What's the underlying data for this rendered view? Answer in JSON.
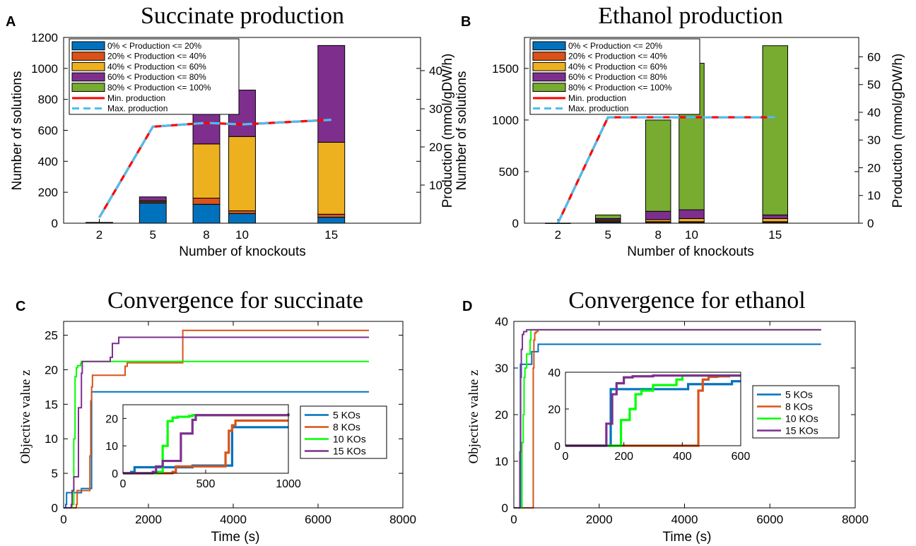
{
  "colors": {
    "blue": "#0072BD",
    "orange": "#D95319",
    "yellow": "#EDB120",
    "purple": "#7E2F8E",
    "green": "#77AC30",
    "bright_green": "#00FF00",
    "min_line": "#FF0000",
    "max_line": "#4DBEEE"
  },
  "panels": {
    "A": {
      "letter": "A",
      "title": "Succinate production",
      "xlabel": "Number of knockouts",
      "ylabel_left": "Number of solutions",
      "ylabel_right": "Production (mmol/gDW/h)"
    },
    "B": {
      "letter": "B",
      "title": "Ethanol production",
      "xlabel": "Number of knockouts",
      "ylabel_left": "Number of solutions",
      "ylabel_right": "Production (mmol/gDW/h)"
    },
    "C": {
      "letter": "C",
      "title": "Convergence for succinate",
      "xlabel": "Time (s)",
      "ylabel": "Objective value z"
    },
    "D": {
      "letter": "D",
      "title": "Convergence for ethanol",
      "xlabel": "Time (s)",
      "ylabel": "Objective value z"
    }
  },
  "chart_data": [
    {
      "type": "bar",
      "panel": "A",
      "title": "Succinate production",
      "xlabel": "Number of knockouts",
      "ylabel": "Number of solutions",
      "y2label": "Production (mmol/gDW/h)",
      "categories": [
        "2",
        "5",
        "8",
        "10",
        "15"
      ],
      "xlim": [
        0,
        20
      ],
      "ylim": [
        0,
        1200
      ],
      "yticks": [
        0,
        200,
        400,
        600,
        800,
        1000,
        1200
      ],
      "y2lim": [
        0,
        48.7
      ],
      "y2ticks": [
        10,
        20,
        30,
        40
      ],
      "stacked": true,
      "series": [
        {
          "name": "0%  < Production <= 20%",
          "values": [
            3,
            130,
            122,
            62,
            38
          ]
        },
        {
          "name": "20% < Production <= 40%",
          "values": [
            1,
            8,
            40,
            18,
            20
          ]
        },
        {
          "name": "40% < Production <= 60%",
          "values": [
            1,
            7,
            350,
            480,
            465
          ]
        },
        {
          "name": "60% < Production <= 80%",
          "values": [
            0,
            25,
            208,
            300,
            625
          ]
        },
        {
          "name": "80% < Production <= 100%",
          "values": [
            0,
            0,
            0,
            0,
            0
          ]
        }
      ],
      "lines": [
        {
          "name": "Min. production",
          "x": [
            2,
            5,
            8,
            10,
            15
          ],
          "y": [
            1.5,
            25.3,
            26.3,
            25.9,
            27.1
          ]
        },
        {
          "name": "Max. production",
          "x": [
            2,
            5,
            8,
            10,
            15
          ],
          "y": [
            1.5,
            25.3,
            26.3,
            25.9,
            27.1
          ]
        }
      ],
      "legend": "top-left"
    },
    {
      "type": "bar",
      "panel": "B",
      "title": "Ethanol production",
      "xlabel": "Number of knockouts",
      "ylabel": "Number of solutions",
      "y2label": "Production (mmol/gDW/h)",
      "categories": [
        "2",
        "5",
        "8",
        "10",
        "15"
      ],
      "xlim": [
        0,
        20
      ],
      "ylim": [
        0,
        1800
      ],
      "yticks": [
        0,
        500,
        1000,
        1500
      ],
      "y2lim": [
        0,
        67
      ],
      "y2ticks": [
        0,
        10,
        20,
        30,
        40,
        50,
        60
      ],
      "stacked": true,
      "series": [
        {
          "name": "0%  < Production <= 20%",
          "values": [
            1,
            10,
            5,
            5,
            5
          ]
        },
        {
          "name": "20% < Production <= 40%",
          "values": [
            0,
            10,
            10,
            10,
            10
          ]
        },
        {
          "name": "40% < Production <= 60%",
          "values": [
            0,
            10,
            20,
            30,
            30
          ]
        },
        {
          "name": "60% < Production <= 80%",
          "values": [
            0,
            15,
            80,
            85,
            35
          ]
        },
        {
          "name": "80% < Production <= 100%",
          "values": [
            0,
            35,
            885,
            1420,
            1640
          ]
        }
      ],
      "lines": [
        {
          "name": "Min. production",
          "x": [
            2,
            5,
            8,
            10,
            15
          ],
          "y": [
            0,
            38.2,
            38.2,
            38.2,
            38.2
          ]
        },
        {
          "name": "Max. production",
          "x": [
            2,
            5,
            8,
            10,
            15
          ],
          "y": [
            0,
            38.2,
            38.2,
            38.2,
            38.2
          ]
        }
      ],
      "legend": "top-left"
    },
    {
      "type": "line",
      "panel": "C",
      "title": "Convergence for succinate",
      "xlabel": "Time (s)",
      "ylabel": "Objective value z",
      "xlim": [
        0,
        8000
      ],
      "xticks": [
        0,
        2000,
        4000,
        6000,
        8000
      ],
      "ylim": [
        0,
        27
      ],
      "yticks": [
        0,
        5,
        10,
        15,
        20,
        25
      ],
      "series": [
        {
          "name": "5 KOs",
          "x": [
            0,
            50,
            70,
            400,
            420,
            650,
            660,
            7200
          ],
          "y": [
            0,
            0.5,
            2.2,
            2.2,
            2.8,
            2.8,
            16.8,
            16.8
          ]
        },
        {
          "name": "8 KOs",
          "x": [
            0,
            300,
            320,
            600,
            620,
            640,
            660,
            680,
            1400,
            1450,
            1500,
            2800,
            2810,
            7200
          ],
          "y": [
            0,
            0.5,
            2.5,
            2.5,
            7.5,
            15.5,
            17.5,
            19.2,
            19.2,
            20.5,
            21.0,
            21.0,
            25.7,
            25.7
          ]
        },
        {
          "name": "10 KOs",
          "x": [
            0,
            200,
            240,
            270,
            300,
            330,
            400,
            420,
            7200
          ],
          "y": [
            0,
            0.5,
            10,
            19,
            20.3,
            20.6,
            20.9,
            21.2,
            21.2
          ]
        },
        {
          "name": "15 KOs",
          "x": [
            0,
            180,
            200,
            240,
            320,
            350,
            420,
            440,
            1100,
            1150,
            1300,
            7200
          ],
          "y": [
            0,
            0.5,
            2.5,
            4.5,
            4.5,
            14.5,
            19.5,
            21.2,
            21.8,
            23.8,
            24.7,
            24.7
          ]
        }
      ],
      "inset": {
        "xlim": [
          0,
          1000
        ],
        "xticks": [
          0,
          500,
          1000
        ],
        "ylim": [
          0,
          25
        ],
        "yticks": [
          0,
          10,
          20
        ]
      },
      "legend": "inside-right"
    },
    {
      "type": "line",
      "panel": "D",
      "title": "Convergence for ethanol",
      "xlabel": "Time (s)",
      "ylabel": "Objective value z",
      "xlim": [
        0,
        8000
      ],
      "xticks": [
        0,
        2000,
        4000,
        6000,
        8000
      ],
      "ylim": [
        0,
        40
      ],
      "yticks": [
        0,
        10,
        20,
        30,
        40
      ],
      "series": [
        {
          "name": "5 KOs",
          "x": [
            0,
            140,
            155,
            400,
            420,
            560,
            570,
            7200
          ],
          "y": [
            0,
            0,
            30.8,
            30.8,
            33.5,
            33.5,
            35.1,
            35.1
          ]
        },
        {
          "name": "8 KOs",
          "x": [
            0,
            440,
            455,
            470,
            490,
            520,
            560,
            7200
          ],
          "y": [
            0,
            0,
            30,
            36,
            37.5,
            37.8,
            38.2,
            38.2
          ]
        },
        {
          "name": "10 KOs",
          "x": [
            0,
            180,
            190,
            220,
            240,
            260,
            300,
            380,
            400,
            7200
          ],
          "y": [
            0,
            0,
            14,
            20,
            28,
            30,
            33,
            36,
            38.2,
            38.2
          ]
        },
        {
          "name": "15 KOs",
          "x": [
            0,
            130,
            140,
            160,
            175,
            200,
            230,
            300,
            7200
          ],
          "y": [
            0,
            0,
            12,
            28,
            34,
            37.2,
            37.8,
            38.2,
            38.2
          ]
        }
      ],
      "inset": {
        "xlim": [
          0,
          600
        ],
        "xticks": [
          0,
          200,
          400,
          600
        ],
        "ylim": [
          0,
          40
        ],
        "yticks": [
          0,
          20,
          40
        ]
      },
      "legend": "inside-right"
    }
  ]
}
